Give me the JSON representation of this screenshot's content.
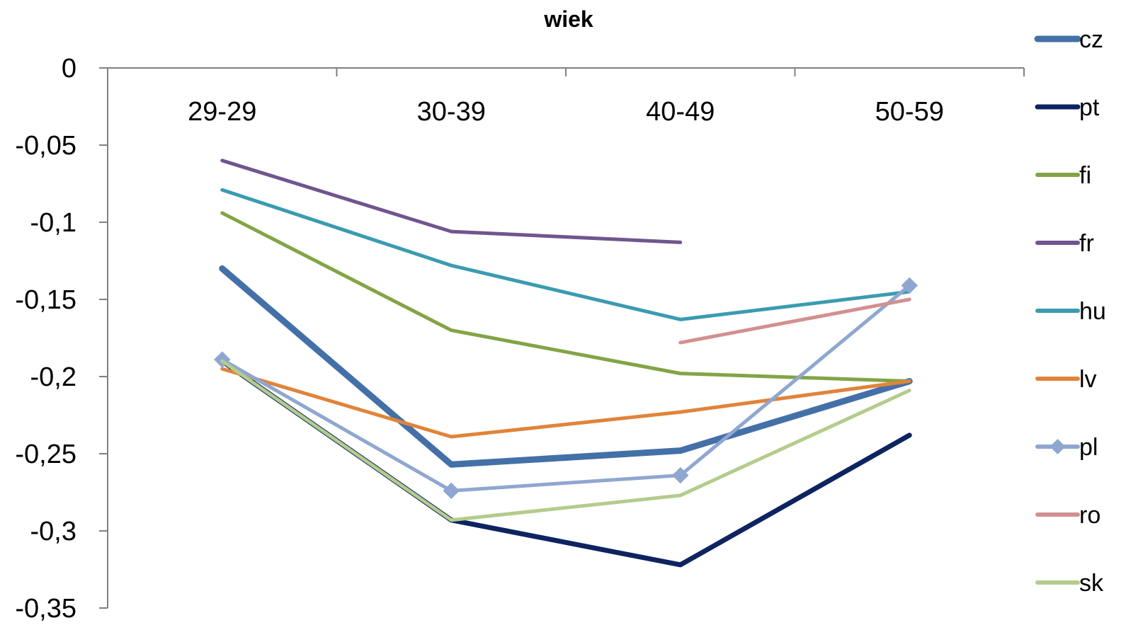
{
  "chart_data": {
    "type": "line",
    "title": "wiek",
    "xlabel": "",
    "ylabel": "",
    "categories": [
      "29-29",
      "30-39",
      "40-49",
      "50-59"
    ],
    "ylim": [
      -0.35,
      0
    ],
    "yticks": [
      0,
      -0.05,
      -0.1,
      -0.15,
      -0.2,
      -0.25,
      -0.3,
      -0.35
    ],
    "ytick_labels": [
      "0",
      "-0,05",
      "-0,1",
      "-0,15",
      "-0,2",
      "-0,25",
      "-0,3",
      "-0,35"
    ],
    "grid": false,
    "legend_position": "right",
    "series": [
      {
        "name": "cz",
        "color": "#4470a8",
        "values": [
          -0.13,
          -0.257,
          -0.248,
          -0.203
        ]
      },
      {
        "name": "pt",
        "color": "#0d2461",
        "values": [
          -0.19,
          -0.293,
          -0.322,
          -0.238
        ]
      },
      {
        "name": "fi",
        "color": "#83a446",
        "values": [
          -0.094,
          -0.17,
          -0.198,
          -0.203
        ]
      },
      {
        "name": "fr",
        "color": "#70558f",
        "values": [
          -0.06,
          -0.106,
          -0.113,
          null
        ]
      },
      {
        "name": "hu",
        "color": "#3b9bb0",
        "values": [
          -0.079,
          -0.128,
          -0.163,
          -0.145
        ]
      },
      {
        "name": "lv",
        "color": "#e0843a",
        "values": [
          -0.195,
          -0.239,
          -0.223,
          -0.203
        ]
      },
      {
        "name": "pl",
        "color": "#8fa7d0",
        "marker": "diamond",
        "values": [
          -0.189,
          -0.274,
          -0.264,
          -0.141
        ]
      },
      {
        "name": "ro",
        "color": "#d39090",
        "values": [
          null,
          null,
          -0.178,
          -0.15
        ]
      },
      {
        "name": "sk",
        "color": "#b4cc8c",
        "values": [
          -0.19,
          -0.293,
          -0.277,
          -0.209
        ]
      }
    ]
  }
}
